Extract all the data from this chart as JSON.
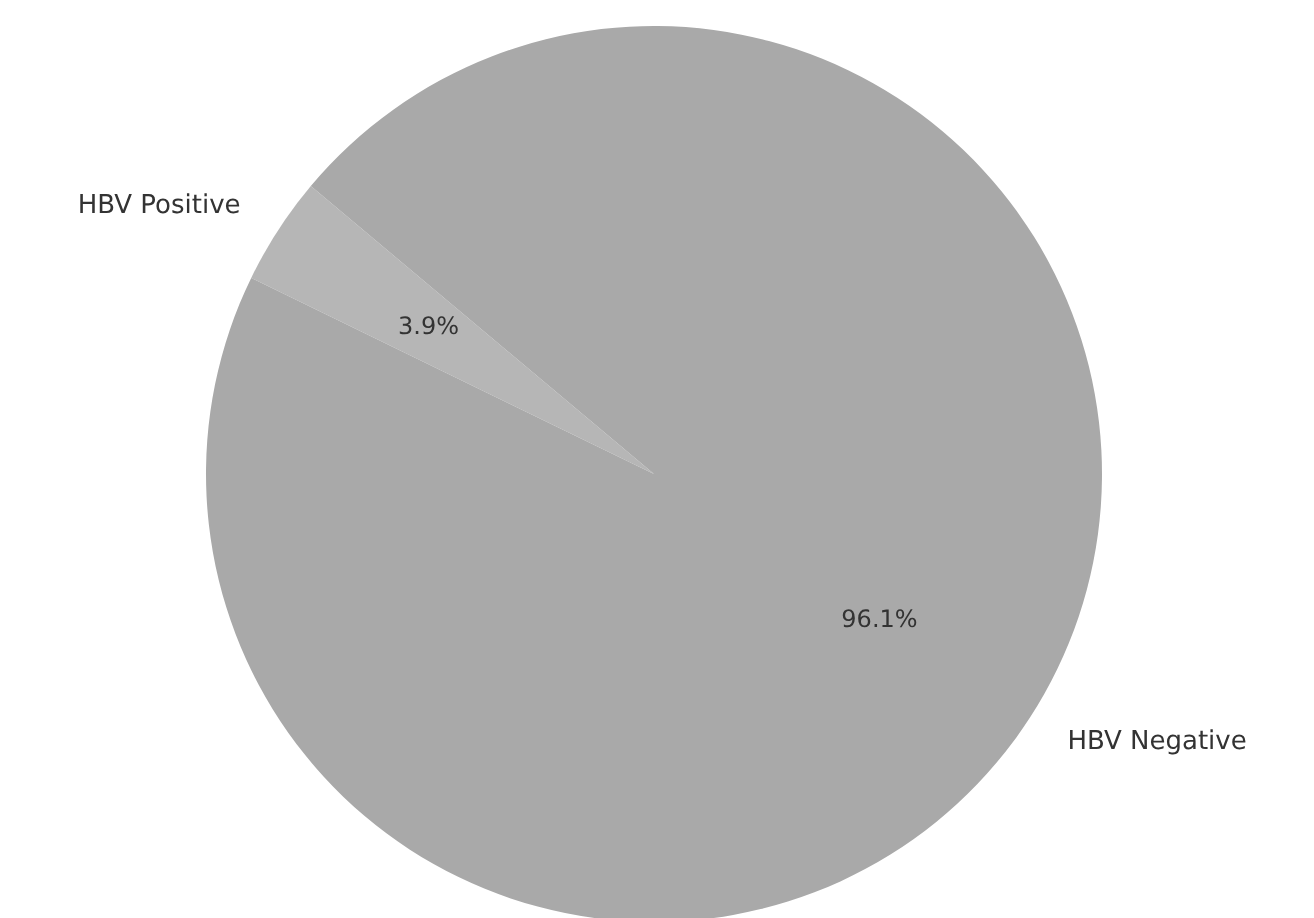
{
  "chart_data": {
    "type": "pie",
    "categories": [
      "HBV Positive",
      "HBV Negative"
    ],
    "values": [
      3.9,
      96.1
    ],
    "colors": [
      "#b6b6b6",
      "#a9a9a9"
    ],
    "value_labels": [
      "3.9%",
      "96.1%"
    ],
    "legend": false
  }
}
